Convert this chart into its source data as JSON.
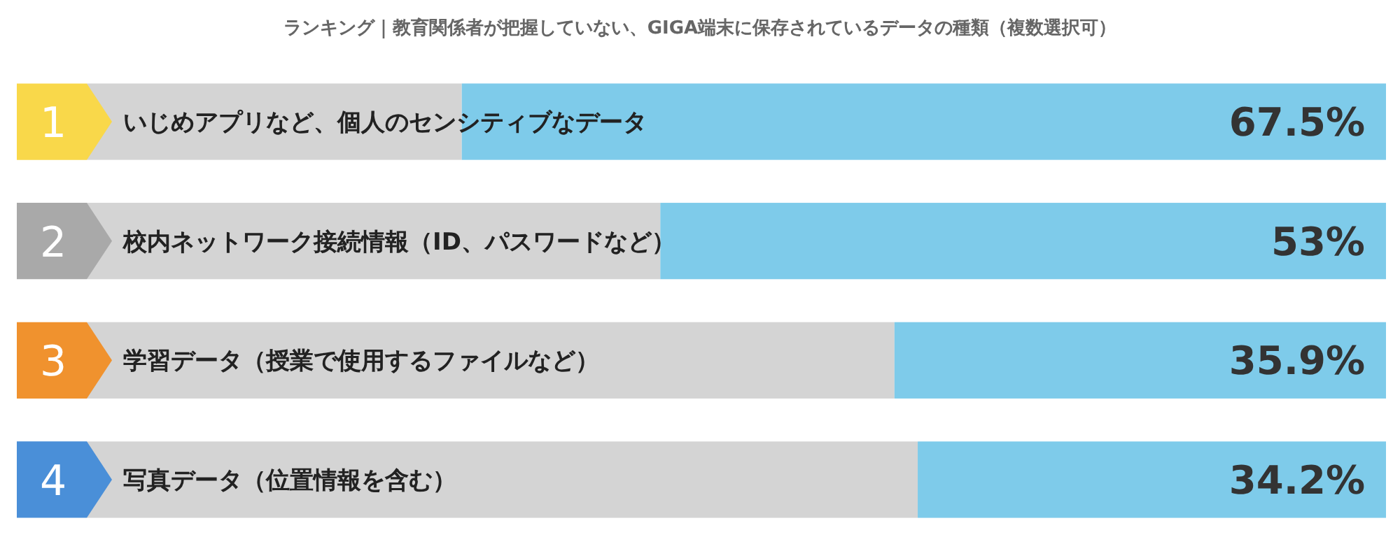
{
  "chart_data": {
    "type": "bar",
    "orientation": "horizontal",
    "title": "ランキング｜教育関係者が把握していない、GIGA端末に保存されているデータの種類（複数選択可）",
    "categories": [
      "いじめアプリなど、個人のセンシティブなデータ",
      "校内ネットワーク接続情報（ID、パスワードなど）",
      "学習データ（授業で使用するファイルなど）",
      "写真データ（位置情報を含む）"
    ],
    "values": [
      67.5,
      53,
      35.9,
      34.2
    ],
    "value_labels": [
      "67.5%",
      "53%",
      "35.9%",
      "34.2%"
    ],
    "color": "#7ecbea",
    "xlim": [
      100,
      0
    ],
    "tick_labels": "y",
    "annotations": [
      "1",
      "2",
      "3",
      "4"
    ]
  }
}
